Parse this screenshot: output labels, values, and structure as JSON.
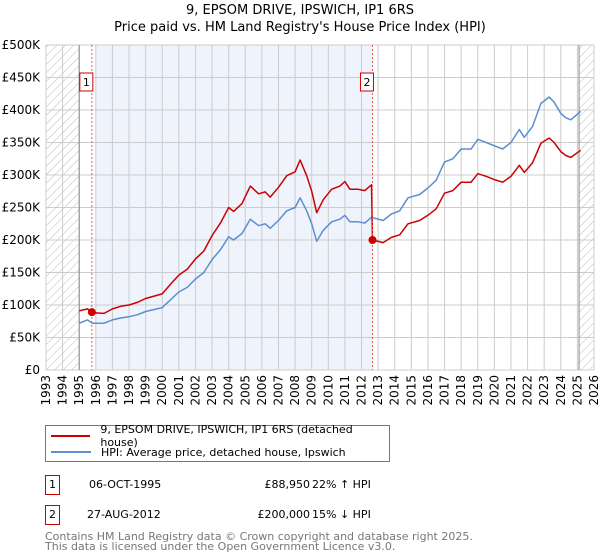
{
  "chart_data": {
    "type": "line",
    "title": "9, EPSOM DRIVE, IPSWICH, IP1 6RS",
    "subtitle": "Price paid vs. HM Land Registry's House Price Index (HPI)",
    "xlim": [
      1993,
      2026
    ],
    "ylim": [
      0,
      500000
    ],
    "x_ticks": [
      "1993",
      "1994",
      "1995",
      "1996",
      "1997",
      "1998",
      "1999",
      "2000",
      "2001",
      "2002",
      "2003",
      "2004",
      "2005",
      "2006",
      "2007",
      "2008",
      "2009",
      "2010",
      "2011",
      "2012",
      "2013",
      "2014",
      "2015",
      "2016",
      "2017",
      "2018",
      "2019",
      "2020",
      "2021",
      "2022",
      "2023",
      "2024",
      "2025",
      "2026"
    ],
    "y_ticks": [
      {
        "v": 0,
        "label": "£0"
      },
      {
        "v": 50000,
        "label": "£50K"
      },
      {
        "v": 100000,
        "label": "£100K"
      },
      {
        "v": 150000,
        "label": "£150K"
      },
      {
        "v": 200000,
        "label": "£200K"
      },
      {
        "v": 250000,
        "label": "£250K"
      },
      {
        "v": 300000,
        "label": "£300K"
      },
      {
        "v": 350000,
        "label": "£350K"
      },
      {
        "v": 400000,
        "label": "£400K"
      },
      {
        "v": 450000,
        "label": "£450K"
      },
      {
        "v": 500000,
        "label": "£500K"
      }
    ],
    "grid": true,
    "hatched_ranges": [
      [
        1993,
        1995.0
      ],
      [
        2025.1,
        2026
      ]
    ],
    "shaded_range": [
      1996.0,
      2012.66
    ],
    "series": [
      {
        "name": "9, EPSOM DRIVE, IPSWICH, IP1 6RS (detached house)",
        "color": "#cc0000",
        "x": [
          1995.0,
          1995.5,
          1995.8,
          1996.5,
          1997,
          1997.5,
          1998,
          1998.5,
          1999,
          2000,
          2000.5,
          2001,
          2001.5,
          2002,
          2002.5,
          2003,
          2003.5,
          2004,
          2004.3,
          2004.8,
          2005.3,
          2005.8,
          2006.2,
          2006.5,
          2007,
          2007.5,
          2008,
          2008.3,
          2008.7,
          2009,
          2009.3,
          2009.7,
          2010.2,
          2010.7,
          2011,
          2011.3,
          2011.8,
          2012.2,
          2012.6,
          2012.66,
          2013.3,
          2013.8,
          2014.3,
          2014.8,
          2015.5,
          2016,
          2016.5,
          2017,
          2017.5,
          2018,
          2018.6,
          2019,
          2019.5,
          2020,
          2020.5,
          2021,
          2021.5,
          2021.8,
          2022.3,
          2022.8,
          2023.3,
          2023.6,
          2024,
          2024.3,
          2024.6,
          2025.2
        ],
        "values": [
          91000,
          94000,
          88000,
          87000,
          94000,
          98000,
          100000,
          104000,
          110000,
          117000,
          132000,
          146000,
          155000,
          171000,
          183000,
          207000,
          226000,
          250000,
          244000,
          256000,
          283000,
          271000,
          274000,
          266000,
          281000,
          299000,
          305000,
          323000,
          299000,
          275000,
          242000,
          262000,
          278000,
          283000,
          290000,
          278000,
          278000,
          276000,
          285000,
          200000,
          196000,
          204000,
          208000,
          225000,
          230000,
          238000,
          248000,
          272000,
          276000,
          289000,
          289000,
          302000,
          298000,
          293000,
          289000,
          298000,
          315000,
          304000,
          319000,
          349000,
          357000,
          350000,
          336000,
          330000,
          327000,
          338000
        ]
      },
      {
        "name": "HPI: Average price, detached house, Ipswich",
        "color": "#5b8fd0",
        "x": [
          1995.0,
          1995.5,
          1995.8,
          1996.5,
          1997,
          1997.5,
          1998,
          1998.5,
          1999,
          2000,
          2000.5,
          2001,
          2001.5,
          2002,
          2002.5,
          2003,
          2003.5,
          2004,
          2004.3,
          2004.8,
          2005.3,
          2005.8,
          2006.2,
          2006.5,
          2007,
          2007.5,
          2008,
          2008.3,
          2008.7,
          2009,
          2009.3,
          2009.7,
          2010.2,
          2010.7,
          2011,
          2011.3,
          2011.8,
          2012.2,
          2012.6,
          2013.3,
          2013.8,
          2014.3,
          2014.8,
          2015.5,
          2016,
          2016.5,
          2017,
          2017.5,
          2018,
          2018.6,
          2019,
          2019.5,
          2020,
          2020.5,
          2021,
          2021.5,
          2021.8,
          2022.3,
          2022.8,
          2023.3,
          2023.6,
          2024,
          2024.3,
          2024.6,
          2025.2
        ],
        "values": [
          72000,
          77000,
          72000,
          72000,
          77000,
          80000,
          82000,
          85000,
          90000,
          96000,
          108000,
          120000,
          127000,
          140000,
          150000,
          170000,
          185000,
          205000,
          200000,
          210000,
          232000,
          222000,
          225000,
          218000,
          230000,
          245000,
          250000,
          265000,
          245000,
          225000,
          198000,
          215000,
          228000,
          232000,
          238000,
          228000,
          228000,
          226000,
          235000,
          230000,
          240000,
          245000,
          265000,
          270000,
          280000,
          292000,
          320000,
          325000,
          340000,
          340000,
          355000,
          350000,
          345000,
          340000,
          350000,
          370000,
          358000,
          375000,
          410000,
          420000,
          412000,
          395000,
          388000,
          385000,
          398000
        ]
      }
    ],
    "sales": [
      {
        "id": "1",
        "x": 1995.76,
        "value": 88950
      },
      {
        "id": "2",
        "x": 2012.66,
        "value": 200000
      }
    ]
  },
  "legend": {
    "property": "9, EPSOM DRIVE, IPSWICH, IP1 6RS (detached house)",
    "hpi": "HPI: Average price, detached house, Ipswich"
  },
  "transactions": [
    {
      "id": "1",
      "date": "06-OCT-1995",
      "price": "£88,950",
      "hpi": "22% ↑ HPI"
    },
    {
      "id": "2",
      "date": "27-AUG-2012",
      "price": "£200,000",
      "hpi": "15% ↓ HPI"
    }
  ],
  "footer": {
    "line1": "Contains HM Land Registry data © Crown copyright and database right 2025.",
    "line2": "This data is licensed under the Open Government Licence v3.0."
  }
}
